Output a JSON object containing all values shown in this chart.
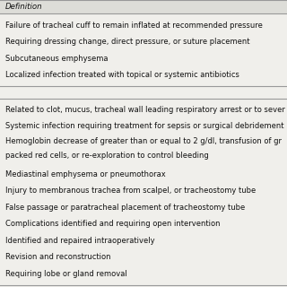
{
  "header": "Definition",
  "section1_rows": [
    "Failure of tracheal cuff to remain inflated at recommended pressure",
    "Requiring dressing change, direct pressure, or suture placement",
    "Subcutaneous emphysema",
    "Localized infection treated with topical or systemic antibiotics"
  ],
  "section2_rows": [
    "Related to clot, mucus, tracheal wall leading respiratory arrest or to sever",
    "Systemic infection requiring treatment for sepsis or surgical debridement",
    "Hemoglobin decrease of greater than or equal to 2 g/dl, transfusion of gr",
    "packed red cells, or re-exploration to control bleeding",
    "Mediastinal emphysema or pneumothorax",
    "Injury to membranous trachea from scalpel, or tracheostomy tube",
    "False passage or paratracheal placement of tracheostomy tube",
    "Complications identified and requiring open intervention",
    "Identified and repaired intraoperatively",
    "Revision and reconstruction",
    "Requiring lobe or gland removal"
  ],
  "bg_color": "#f0efeb",
  "header_bg_color": "#ddddd8",
  "text_color": "#111111",
  "line_color": "#999999",
  "font_size": 6.0,
  "header_font_size": 6.2
}
